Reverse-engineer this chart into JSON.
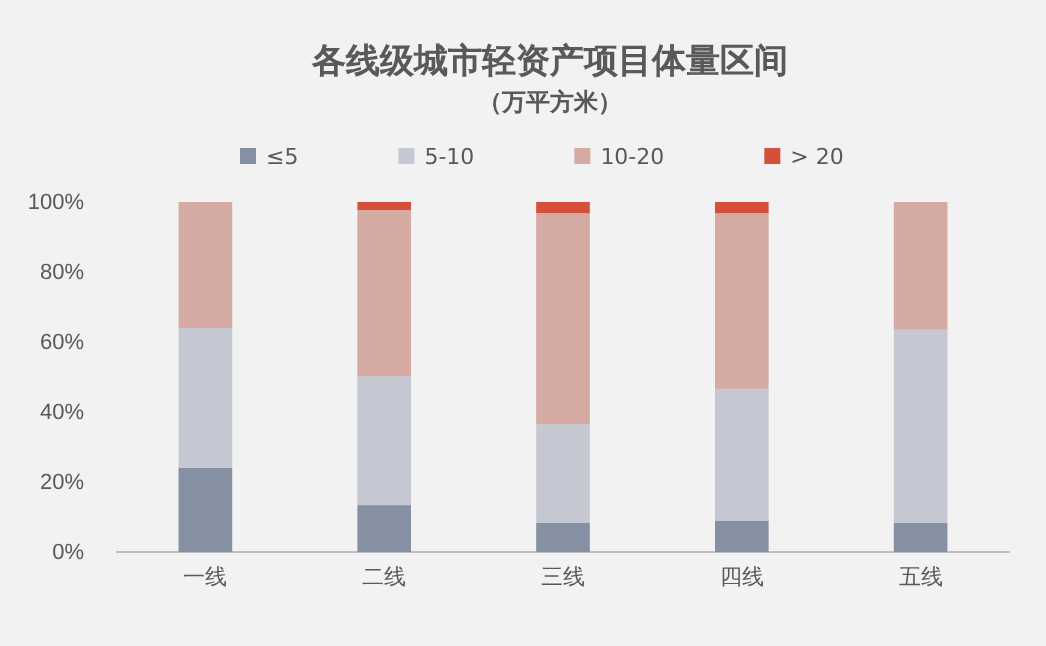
{
  "chart_data": {
    "type": "bar",
    "stacked": true,
    "title": "各线级城市轻资产项目体量区间",
    "subtitle": "（万平方米）",
    "categories": [
      "一线",
      "二线",
      "三线",
      "四线",
      "五线"
    ],
    "series": [
      {
        "name": "≤5",
        "color": "#8591a3",
        "values": [
          24,
          13.4,
          8.4,
          9,
          8.4
        ]
      },
      {
        "name": "5-10",
        "color": "#c5c7d2",
        "values": [
          40,
          36.8,
          28.1,
          37.6,
          55.1
        ]
      },
      {
        "name": "10-20",
        "color": "#d5aaa3",
        "values": [
          36,
          47.5,
          60.3,
          50.2,
          36.5
        ]
      },
      {
        "name": "> 20",
        "color": "#d4503a",
        "values": [
          0,
          2.3,
          3.2,
          3.2,
          0
        ]
      }
    ],
    "ylim": [
      0,
      100
    ],
    "yticks": [
      {
        "value": 0,
        "label": "0%"
      },
      {
        "value": 20,
        "label": "20%"
      },
      {
        "value": 40,
        "label": "40%"
      },
      {
        "value": 60,
        "label": "60%"
      },
      {
        "value": 80,
        "label": "80%"
      },
      {
        "value": 100,
        "label": "100%"
      }
    ],
    "grid": false,
    "legend": "top"
  }
}
